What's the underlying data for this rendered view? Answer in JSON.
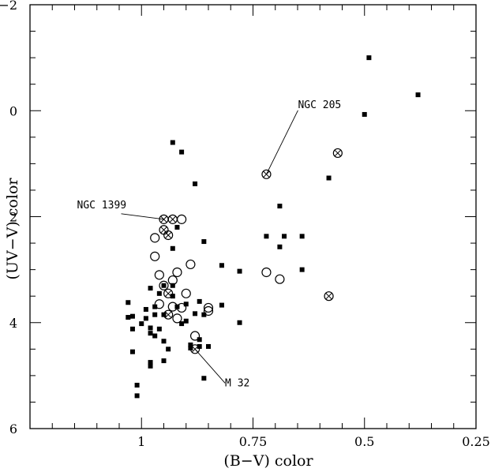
{
  "chart_data": {
    "type": "scatter",
    "xlabel": "(B−V) color",
    "ylabel": "(UV−V) color",
    "xlim": [
      1.25,
      0.25
    ],
    "ylim": [
      6,
      -2
    ],
    "x_ticks": [
      {
        "value": 1.0,
        "label": "1"
      },
      {
        "value": 0.75,
        "label": "0.75"
      },
      {
        "value": 0.5,
        "label": "0.5"
      },
      {
        "value": 0.25,
        "label": "0.25"
      }
    ],
    "y_ticks": [
      {
        "value": -2,
        "label": "−2"
      },
      {
        "value": 0,
        "label": "0"
      },
      {
        "value": 2,
        "label": "2"
      },
      {
        "value": 4,
        "label": "4"
      },
      {
        "value": 6,
        "label": "6"
      }
    ],
    "grid": false,
    "series": [
      {
        "marker": "filled-square",
        "points": [
          [
            0.49,
            -1.0
          ],
          [
            0.38,
            -0.3
          ],
          [
            0.5,
            0.07
          ],
          [
            0.93,
            0.6
          ],
          [
            0.91,
            0.78
          ],
          [
            0.88,
            1.38
          ],
          [
            0.58,
            1.27
          ],
          [
            0.69,
            1.8
          ],
          [
            0.72,
            2.37
          ],
          [
            0.68,
            2.37
          ],
          [
            0.64,
            2.37
          ],
          [
            0.69,
            2.57
          ],
          [
            0.86,
            2.47
          ],
          [
            0.92,
            2.2
          ],
          [
            0.93,
            2.6
          ],
          [
            0.82,
            2.92
          ],
          [
            0.78,
            3.03
          ],
          [
            0.64,
            3.0
          ],
          [
            0.98,
            3.35
          ],
          [
            0.96,
            3.45
          ],
          [
            0.95,
            3.3
          ],
          [
            0.93,
            3.3
          ],
          [
            0.93,
            3.5
          ],
          [
            0.97,
            3.7
          ],
          [
            0.99,
            3.75
          ],
          [
            0.97,
            3.85
          ],
          [
            0.95,
            3.85
          ],
          [
            0.92,
            3.7
          ],
          [
            0.9,
            3.65
          ],
          [
            0.87,
            3.6
          ],
          [
            0.82,
            3.67
          ],
          [
            0.88,
            3.83
          ],
          [
            0.86,
            3.85
          ],
          [
            0.91,
            4.02
          ],
          [
            0.9,
            3.97
          ],
          [
            0.78,
            4.0
          ],
          [
            1.03,
            3.62
          ],
          [
            1.03,
            3.9
          ],
          [
            1.02,
            3.88
          ],
          [
            1.02,
            4.12
          ],
          [
            1.0,
            4.02
          ],
          [
            0.99,
            3.92
          ],
          [
            0.98,
            4.1
          ],
          [
            0.98,
            4.2
          ],
          [
            0.97,
            4.25
          ],
          [
            0.96,
            4.12
          ],
          [
            0.95,
            4.35
          ],
          [
            0.94,
            4.5
          ],
          [
            0.95,
            4.72
          ],
          [
            0.98,
            4.75
          ],
          [
            0.98,
            4.82
          ],
          [
            1.02,
            4.55
          ],
          [
            0.87,
            4.32
          ],
          [
            0.87,
            4.45
          ],
          [
            0.85,
            4.45
          ],
          [
            0.89,
            4.42
          ],
          [
            0.89,
            4.48
          ],
          [
            0.86,
            5.05
          ],
          [
            1.01,
            5.18
          ],
          [
            1.01,
            5.38
          ]
        ]
      },
      {
        "marker": "open-circle",
        "points": [
          [
            0.91,
            2.05
          ],
          [
            0.97,
            2.4
          ],
          [
            0.97,
            2.75
          ],
          [
            0.96,
            3.1
          ],
          [
            0.93,
            3.2
          ],
          [
            0.89,
            2.9
          ],
          [
            0.92,
            3.05
          ],
          [
            0.9,
            3.45
          ],
          [
            0.95,
            3.3
          ],
          [
            0.96,
            3.65
          ],
          [
            0.93,
            3.7
          ],
          [
            0.91,
            3.72
          ],
          [
            0.92,
            3.92
          ],
          [
            0.85,
            3.72
          ],
          [
            0.85,
            3.78
          ],
          [
            0.88,
            4.25
          ],
          [
            0.72,
            3.05
          ],
          [
            0.69,
            3.18
          ]
        ]
      },
      {
        "marker": "crossed-circle",
        "points": [
          [
            0.72,
            1.2
          ],
          [
            0.56,
            0.8
          ],
          [
            0.95,
            2.05
          ],
          [
            0.93,
            2.05
          ],
          [
            0.95,
            2.25
          ],
          [
            0.94,
            2.35
          ],
          [
            0.94,
            3.45
          ],
          [
            0.94,
            3.85
          ],
          [
            0.58,
            3.5
          ],
          [
            0.88,
            4.5
          ]
        ]
      }
    ],
    "annotations": [
      {
        "text": "NGC 205",
        "point": [
          0.72,
          1.2
        ]
      },
      {
        "text": "NGC 1399",
        "point": [
          0.95,
          2.05
        ]
      },
      {
        "text": "M 32",
        "point": [
          0.88,
          4.5
        ]
      }
    ]
  }
}
